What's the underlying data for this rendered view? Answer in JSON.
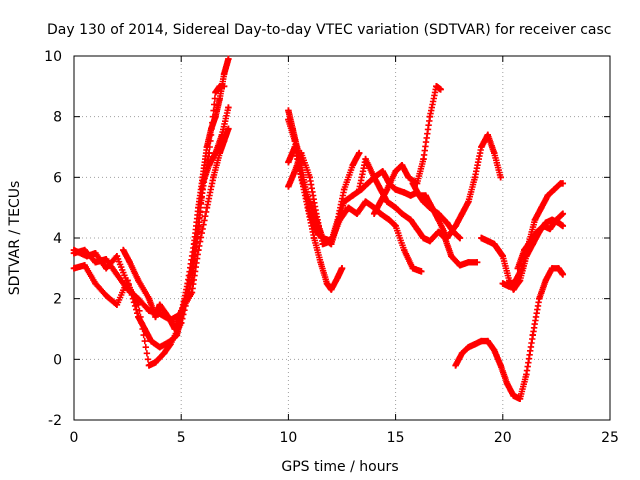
{
  "chart_data": {
    "type": "scatter",
    "title": "Day 130 of 2014, Sidereal Day-to-day VTEC variation (SDTVAR) for receiver casc",
    "xlabel": "GPS time / hours",
    "ylabel": "SDTVAR / TECUs",
    "xlim": [
      0,
      25
    ],
    "ylim": [
      -2,
      10
    ],
    "xticks": [
      0,
      5,
      10,
      15,
      20,
      25
    ],
    "yticks": [
      -2,
      0,
      2,
      4,
      6,
      8,
      10
    ],
    "grid": true,
    "marker": "+",
    "color": "#ff0000",
    "series": [
      {
        "points": [
          [
            0.0,
            3.5
          ],
          [
            0.5,
            3.6
          ],
          [
            1.0,
            3.2
          ],
          [
            1.5,
            3.3
          ],
          [
            2.0,
            2.8
          ],
          [
            2.5,
            2.3
          ],
          [
            3.0,
            2.0
          ],
          [
            3.5,
            1.6
          ],
          [
            4.0,
            1.5
          ],
          [
            4.5,
            1.3
          ],
          [
            5.0,
            1.5
          ],
          [
            5.3,
            2.5
          ],
          [
            5.6,
            3.8
          ],
          [
            5.8,
            5.0
          ],
          [
            6.0,
            6.0
          ],
          [
            6.2,
            7.0
          ],
          [
            6.4,
            7.6
          ],
          [
            6.6,
            8.0
          ],
          [
            6.8,
            8.6
          ],
          [
            7.0,
            9.4
          ],
          [
            7.2,
            9.9
          ]
        ]
      },
      {
        "points": [
          [
            0.0,
            3.0
          ],
          [
            0.5,
            3.1
          ],
          [
            1.0,
            2.5
          ],
          [
            1.5,
            2.1
          ],
          [
            2.0,
            1.8
          ],
          [
            2.5,
            2.6
          ],
          [
            3.0,
            1.4
          ],
          [
            3.3,
            1.0
          ],
          [
            3.6,
            0.6
          ],
          [
            4.0,
            0.4
          ],
          [
            4.5,
            0.6
          ],
          [
            4.8,
            0.8
          ],
          [
            5.0,
            1.4
          ],
          [
            5.2,
            2.0
          ],
          [
            5.5,
            3.0
          ],
          [
            5.8,
            4.4
          ],
          [
            6.0,
            5.6
          ],
          [
            6.3,
            6.8
          ],
          [
            6.6,
            8.8
          ],
          [
            6.8,
            9.0
          ],
          [
            7.0,
            9.0
          ]
        ]
      },
      {
        "points": [
          [
            0.0,
            3.6
          ],
          [
            0.6,
            3.4
          ],
          [
            1.0,
            3.5
          ],
          [
            1.5,
            3.0
          ],
          [
            2.0,
            3.4
          ],
          [
            2.5,
            2.5
          ],
          [
            3.0,
            1.8
          ],
          [
            3.5,
            -0.2
          ],
          [
            3.8,
            -0.1
          ],
          [
            4.2,
            0.2
          ],
          [
            4.5,
            0.5
          ],
          [
            5.0,
            1.2
          ],
          [
            5.5,
            2.6
          ],
          [
            5.8,
            4.2
          ],
          [
            6.0,
            5.8
          ],
          [
            6.3,
            6.4
          ],
          [
            6.6,
            6.8
          ],
          [
            6.9,
            7.4
          ],
          [
            7.2,
            8.3
          ]
        ]
      },
      {
        "points": [
          [
            2.3,
            3.6
          ],
          [
            2.6,
            3.2
          ],
          [
            3.0,
            2.6
          ],
          [
            3.5,
            2.0
          ],
          [
            3.8,
            1.4
          ],
          [
            4.0,
            1.8
          ],
          [
            4.4,
            1.4
          ],
          [
            4.7,
            1.0
          ],
          [
            5.0,
            1.6
          ],
          [
            5.5,
            2.2
          ],
          [
            5.8,
            3.6
          ],
          [
            6.2,
            5.0
          ],
          [
            6.5,
            6.0
          ],
          [
            6.8,
            6.8
          ],
          [
            7.0,
            7.2
          ],
          [
            7.2,
            7.6
          ]
        ]
      },
      {
        "points": [
          [
            10.0,
            8.2
          ],
          [
            10.2,
            7.6
          ],
          [
            10.4,
            7.0
          ],
          [
            10.6,
            6.4
          ],
          [
            10.8,
            5.6
          ],
          [
            11.0,
            4.8
          ],
          [
            11.3,
            4.2
          ],
          [
            11.6,
            4.0
          ],
          [
            12.0,
            3.8
          ],
          [
            12.3,
            4.5
          ],
          [
            12.6,
            5.2
          ],
          [
            13.0,
            5.4
          ],
          [
            13.4,
            5.6
          ],
          [
            13.7,
            5.8
          ],
          [
            14.0,
            6.0
          ],
          [
            14.4,
            6.2
          ],
          [
            14.7,
            5.8
          ],
          [
            15.0,
            5.6
          ],
          [
            15.4,
            5.5
          ],
          [
            15.7,
            5.4
          ],
          [
            16.0,
            5.5
          ],
          [
            16.3,
            5.2
          ],
          [
            16.6,
            5.0
          ],
          [
            17.0,
            4.8
          ],
          [
            17.4,
            4.5
          ],
          [
            17.7,
            4.2
          ],
          [
            18.0,
            4.0
          ]
        ]
      },
      {
        "points": [
          [
            10.0,
            7.9
          ],
          [
            10.3,
            7.2
          ],
          [
            10.6,
            6.0
          ],
          [
            10.9,
            5.0
          ],
          [
            11.2,
            4.0
          ],
          [
            11.5,
            3.2
          ],
          [
            11.8,
            2.5
          ],
          [
            12.0,
            2.3
          ],
          [
            12.3,
            2.7
          ],
          [
            12.5,
            3.0
          ]
        ]
      },
      {
        "points": [
          [
            10.0,
            6.5
          ],
          [
            10.3,
            7.0
          ],
          [
            10.6,
            6.0
          ],
          [
            11.0,
            5.2
          ],
          [
            11.3,
            4.6
          ],
          [
            11.6,
            4.0
          ],
          [
            12.0,
            3.9
          ],
          [
            12.3,
            4.6
          ],
          [
            12.6,
            5.6
          ],
          [
            13.0,
            6.4
          ],
          [
            13.3,
            6.8
          ]
        ]
      },
      {
        "points": [
          [
            10.0,
            5.7
          ],
          [
            10.3,
            6.2
          ],
          [
            10.6,
            6.8
          ],
          [
            11.0,
            6.0
          ],
          [
            11.3,
            4.8
          ],
          [
            11.6,
            3.8
          ],
          [
            12.0,
            3.9
          ],
          [
            12.4,
            4.6
          ],
          [
            12.8,
            5.0
          ],
          [
            13.2,
            4.8
          ],
          [
            13.6,
            5.2
          ],
          [
            14.0,
            5.0
          ],
          [
            14.3,
            4.8
          ],
          [
            14.7,
            4.6
          ],
          [
            15.0,
            4.4
          ],
          [
            15.4,
            3.6
          ],
          [
            15.8,
            3.0
          ],
          [
            16.2,
            2.9
          ]
        ]
      },
      {
        "points": [
          [
            13.3,
            5.6
          ],
          [
            13.6,
            6.6
          ],
          [
            14.0,
            6.0
          ],
          [
            14.3,
            5.6
          ],
          [
            14.6,
            5.2
          ],
          [
            15.0,
            5.0
          ],
          [
            15.3,
            4.8
          ],
          [
            15.7,
            4.6
          ],
          [
            16.0,
            4.3
          ],
          [
            16.3,
            4.0
          ],
          [
            16.6,
            3.9
          ],
          [
            17.0,
            4.2
          ],
          [
            17.3,
            4.0
          ],
          [
            17.6,
            3.4
          ],
          [
            18.0,
            3.1
          ],
          [
            18.4,
            3.2
          ],
          [
            18.8,
            3.2
          ]
        ]
      },
      {
        "points": [
          [
            14.0,
            4.8
          ],
          [
            14.3,
            5.2
          ],
          [
            14.6,
            5.6
          ],
          [
            15.0,
            6.2
          ],
          [
            15.3,
            6.4
          ],
          [
            15.6,
            6.0
          ],
          [
            16.0,
            5.8
          ],
          [
            16.3,
            6.6
          ],
          [
            16.6,
            8.0
          ],
          [
            16.9,
            9.0
          ],
          [
            17.1,
            8.9
          ]
        ]
      },
      {
        "points": [
          [
            15.8,
            5.8
          ],
          [
            16.1,
            5.4
          ],
          [
            16.4,
            5.4
          ],
          [
            16.7,
            5.0
          ],
          [
            17.0,
            4.6
          ],
          [
            17.4,
            4.0
          ],
          [
            17.8,
            4.4
          ],
          [
            18.1,
            4.8
          ],
          [
            18.4,
            5.2
          ],
          [
            18.7,
            6.0
          ],
          [
            19.0,
            7.0
          ],
          [
            19.3,
            7.4
          ],
          [
            19.6,
            6.8
          ],
          [
            19.9,
            6.0
          ]
        ]
      },
      {
        "points": [
          [
            19.0,
            4.0
          ],
          [
            19.3,
            3.9
          ],
          [
            19.6,
            3.8
          ],
          [
            19.8,
            3.6
          ],
          [
            20.0,
            3.4
          ],
          [
            20.3,
            2.6
          ],
          [
            20.5,
            2.3
          ],
          [
            20.8,
            2.6
          ],
          [
            21.1,
            3.4
          ],
          [
            21.4,
            3.8
          ],
          [
            21.7,
            4.2
          ],
          [
            22.0,
            4.5
          ],
          [
            22.3,
            4.6
          ],
          [
            22.6,
            4.5
          ],
          [
            22.8,
            4.4
          ]
        ]
      },
      {
        "points": [
          [
            20.0,
            2.5
          ],
          [
            20.3,
            2.4
          ],
          [
            20.6,
            2.6
          ],
          [
            20.9,
            3.0
          ],
          [
            21.2,
            3.8
          ],
          [
            21.5,
            4.6
          ],
          [
            21.8,
            5.0
          ],
          [
            22.1,
            5.4
          ],
          [
            22.4,
            5.6
          ],
          [
            22.7,
            5.8
          ],
          [
            22.8,
            5.8
          ]
        ]
      },
      {
        "points": [
          [
            17.8,
            -0.2
          ],
          [
            18.1,
            0.2
          ],
          [
            18.4,
            0.4
          ],
          [
            18.7,
            0.5
          ],
          [
            19.0,
            0.6
          ],
          [
            19.3,
            0.6
          ],
          [
            19.6,
            0.3
          ],
          [
            19.9,
            -0.2
          ],
          [
            20.2,
            -0.8
          ],
          [
            20.5,
            -1.2
          ],
          [
            20.8,
            -1.3
          ],
          [
            21.1,
            -0.5
          ],
          [
            21.4,
            0.8
          ],
          [
            21.7,
            2.0
          ],
          [
            22.0,
            2.6
          ],
          [
            22.3,
            3.0
          ],
          [
            22.6,
            3.0
          ],
          [
            22.8,
            2.8
          ]
        ]
      },
      {
        "points": [
          [
            20.7,
            3.0
          ],
          [
            21.0,
            3.6
          ],
          [
            21.3,
            3.9
          ],
          [
            21.6,
            4.2
          ],
          [
            21.9,
            4.4
          ],
          [
            22.2,
            4.3
          ],
          [
            22.5,
            4.6
          ],
          [
            22.8,
            4.8
          ]
        ]
      }
    ]
  }
}
